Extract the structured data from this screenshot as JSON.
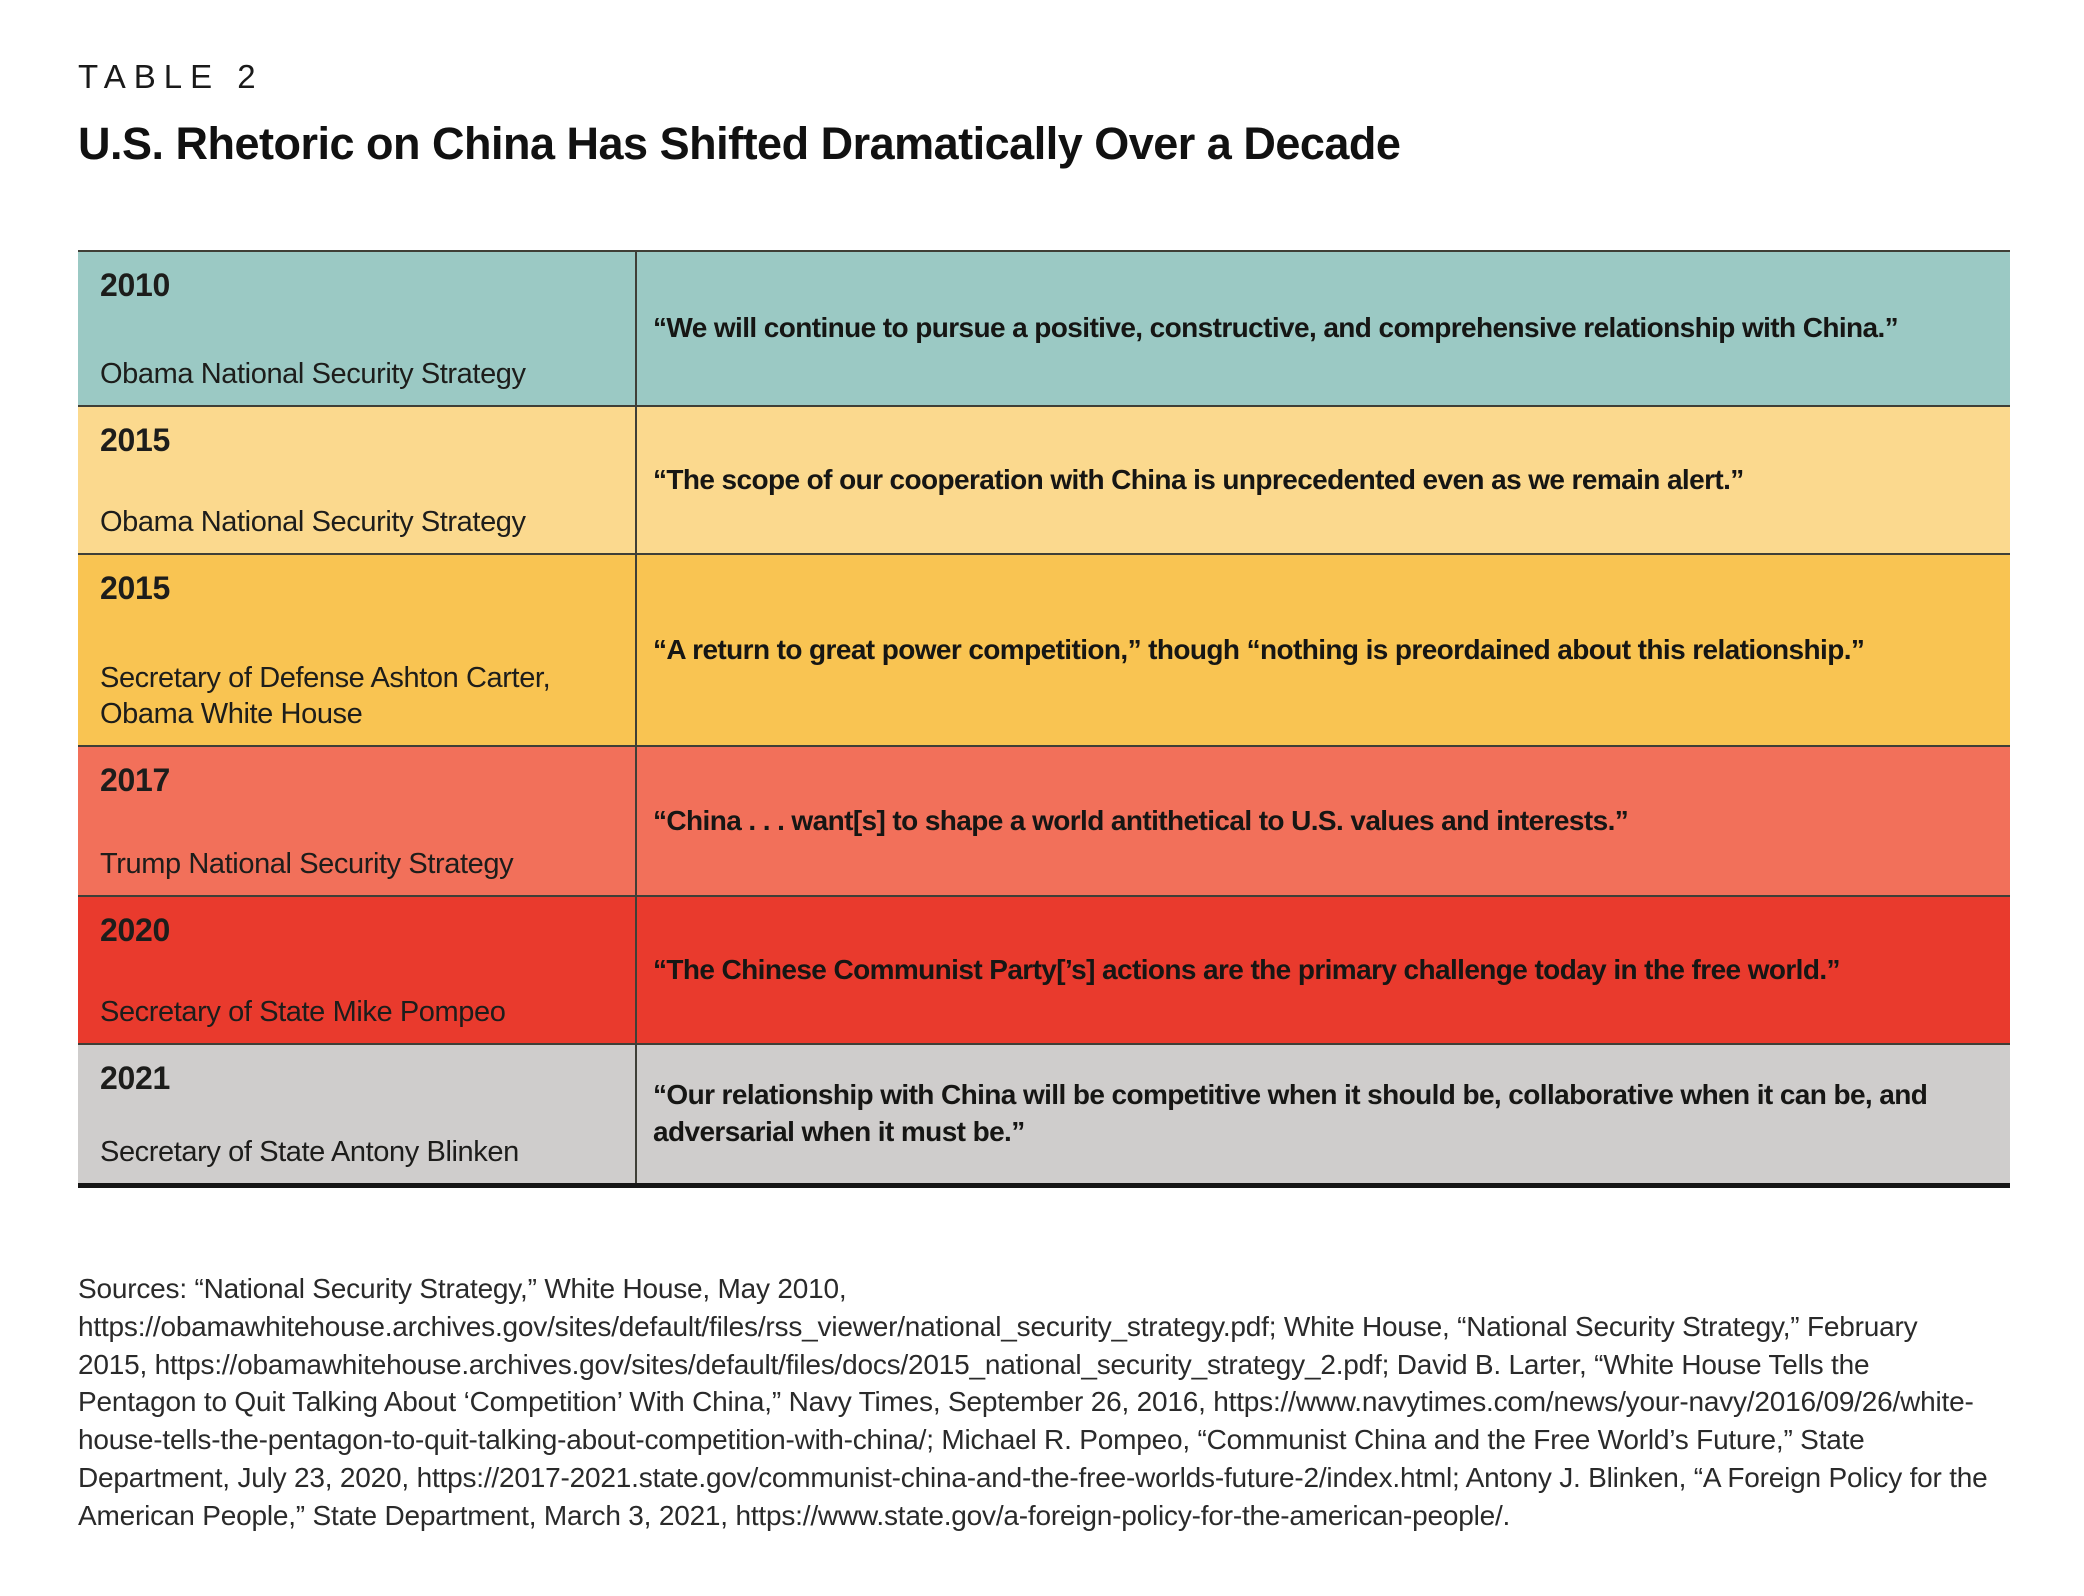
{
  "page": {
    "kicker": "TABLE 2",
    "title": "U.S. Rhetoric on China Has Shifted Dramatically Over a Decade"
  },
  "table": {
    "rows": [
      {
        "year": "2010",
        "source": "Obama National Security Strategy",
        "quote": "“We will continue to pursue a positive, constructive, and comprehensive relationship with China.”",
        "bg": "#9bc9c4"
      },
      {
        "year": "2015",
        "source": "Obama National Security Strategy",
        "quote": "“The scope of our cooperation with China is unprecedented even as we remain alert.”",
        "bg": "#fbd98e"
      },
      {
        "year": "2015",
        "source": "Secretary of Defense Ashton Carter, Obama White House",
        "quote": "“A return to great power competition,” though “nothing is preordained about this relationship.”",
        "bg": "#f9c452"
      },
      {
        "year": "2017",
        "source": "Trump National Security Strategy",
        "quote": "“China . . . want[s] to shape a world antithetical to U.S. values and interests.”",
        "bg": "#f2705a"
      },
      {
        "year": "2020",
        "source": "Secretary of State Mike Pompeo",
        "quote": "“The Chinese Communist Party[’s] actions are the primary challenge today in the free world.”",
        "bg": "#e93a2d"
      },
      {
        "year": "2021",
        "source": "Secretary of State Antony Blinken",
        "quote": "“Our relationship with China will be competitive when it should be, collaborative when it can be, and adversarial when it must be.”",
        "bg": "#cfcdcc"
      }
    ]
  },
  "sources_text": "Sources: “National Security Strategy,” White House, May 2010, https://obamawhitehouse.archives.gov/sites/default/files/rss_viewer/national_security_strategy.pdf; White House, “National Security Strategy,” February 2015, https://obamawhitehouse.archives.gov/sites/default/files/docs/2015_national_security_strategy_2.pdf; David B. Larter, “White House Tells the Pentagon to Quit Talking About ‘Competition’ With China,” Navy Times, September 26, 2016, https://www.navytimes.com/news/your-navy/2016/09/26/white-house-tells-the-pentagon-to-quit-talking-about-competition-with-china/; Michael R. Pompeo, “Communist China and the Free World’s Future,” State Department, July 23, 2020, https://2017-2021.state.gov/communist-china-and-the-free-worlds-future-2/index.html; Antony J. Blinken, “A Foreign Policy for the American People,” State Department, March 3, 2021, https://www.state.gov/a-foreign-policy-for-the-american-people/.",
  "colors": {
    "row_teal": "#9bc9c4",
    "row_light_yellow": "#fbd98e",
    "row_amber": "#f9c452",
    "row_salmon": "#f2705a",
    "row_red": "#e93a2d",
    "row_gray": "#cfcdcc",
    "rule_dark": "#3f3f37",
    "rule_bottom": "#161616"
  }
}
